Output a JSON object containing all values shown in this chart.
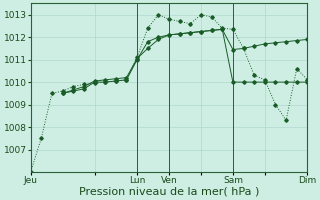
{
  "bg_color": "#ceeee4",
  "grid_color": "#b0d8cc",
  "line_color": "#1a5c28",
  "xlabel": "Pression niveau de la mer( hPa )",
  "ylim": [
    1006.0,
    1013.5
  ],
  "yticks": [
    1007,
    1008,
    1009,
    1010,
    1011,
    1012,
    1013
  ],
  "xlabel_fontsize": 8,
  "tick_fontsize": 6.5,
  "xtick_labels": [
    "Jeu",
    "",
    "Lun",
    "Ven",
    "",
    "Sam",
    "",
    "Dim"
  ],
  "xtick_positions": [
    0,
    6,
    10,
    13,
    16,
    19,
    22,
    26
  ],
  "vlines": [
    0,
    10,
    13,
    19,
    26
  ],
  "x_total": 26,
  "series1": {
    "x": [
      0,
      1,
      2,
      3,
      4,
      5,
      6,
      7,
      8,
      9,
      10,
      11,
      12,
      13,
      14,
      15,
      16,
      17,
      18,
      19,
      20,
      21,
      22,
      23,
      24,
      25,
      26
    ],
    "y": [
      1006.0,
      1007.5,
      1009.5,
      1009.6,
      1009.8,
      1009.9,
      1009.95,
      1010.0,
      1010.05,
      1010.1,
      1011.1,
      1012.4,
      1013.0,
      1012.8,
      1012.7,
      1012.6,
      1013.0,
      1012.9,
      1012.4,
      1012.35,
      1011.5,
      1010.3,
      1010.1,
      1009.0,
      1008.3,
      1010.6,
      1010.1
    ],
    "dotted": true
  },
  "series2": {
    "x": [
      3,
      4,
      5,
      6,
      7,
      8,
      9,
      10,
      11,
      12,
      13,
      14,
      15,
      16,
      17,
      18,
      19,
      20,
      21,
      22,
      23,
      24,
      25,
      26
    ],
    "y": [
      1009.5,
      1009.6,
      1009.7,
      1010.0,
      1010.0,
      1010.05,
      1010.1,
      1011.0,
      1011.8,
      1012.0,
      1012.1,
      1012.15,
      1012.2,
      1012.25,
      1012.3,
      1012.35,
      1010.0,
      1010.0,
      1010.0,
      1010.0,
      1010.0,
      1010.0,
      1010.0,
      1010.0
    ],
    "dotted": false
  },
  "series3": {
    "x": [
      3,
      4,
      5,
      6,
      7,
      8,
      9,
      10,
      11,
      12,
      13,
      14,
      15,
      16,
      17,
      18,
      19,
      20,
      21,
      22,
      23,
      24,
      25,
      26
    ],
    "y": [
      1009.5,
      1009.65,
      1009.8,
      1010.05,
      1010.1,
      1010.15,
      1010.2,
      1011.05,
      1011.5,
      1011.9,
      1012.1,
      1012.15,
      1012.2,
      1012.25,
      1012.3,
      1012.35,
      1011.45,
      1011.5,
      1011.6,
      1011.7,
      1011.75,
      1011.8,
      1011.85,
      1011.9
    ],
    "dotted": false
  }
}
